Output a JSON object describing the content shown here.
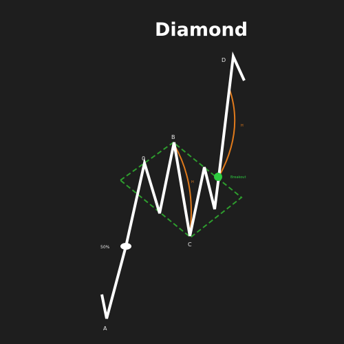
{
  "title": "Diamond",
  "labels": {
    "a": "A",
    "b": "B",
    "c": "C",
    "d": "D",
    "o": "0",
    "percent": "50%",
    "breakout": "Breakout",
    "h1": "H",
    "h2": "H"
  },
  "colors": {
    "background": "#1e1e1e",
    "price": "#ffffff",
    "diamond": "#2e9e2e",
    "measure": "#e07a1c",
    "breakout_dot": "#2ecc40"
  }
}
